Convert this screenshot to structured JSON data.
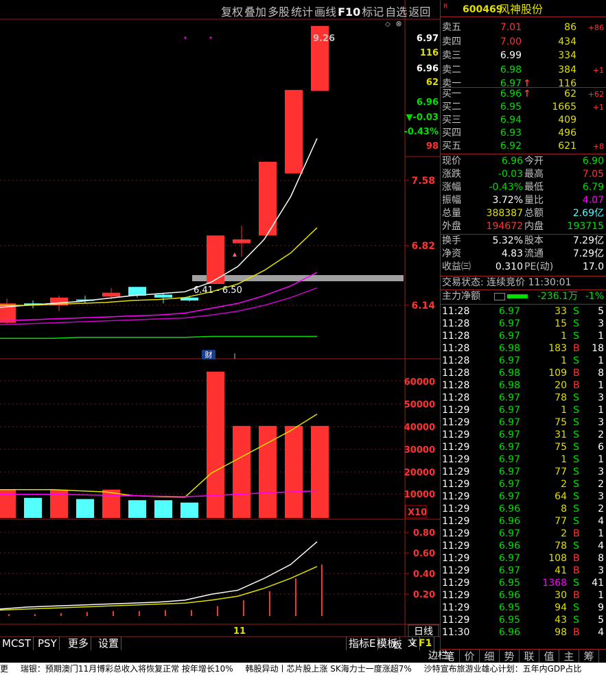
{
  "toolbar": {
    "items": [
      "复权",
      "叠加",
      "多股",
      "统计",
      "画线",
      "F10",
      "标记",
      "自选",
      "返回"
    ]
  },
  "chart": {
    "price_axis": [
      "7.58",
      "6.82",
      "6.14"
    ],
    "left_quote": [
      {
        "v": "6.97",
        "c": "#ffffff"
      },
      {
        "v": "116",
        "c": "#e0e000"
      },
      {
        "v": "6.96",
        "c": "#ffffff"
      },
      {
        "v": "62",
        "c": "#e0e000"
      },
      {
        "v": "6.96",
        "c": "#00e000"
      },
      {
        "v": "▼-0.03",
        "c": "#00e000"
      },
      {
        "v": "-0.43%",
        "c": "#00e000"
      },
      {
        "v": "98",
        "c": "#ff3232"
      }
    ],
    "high_label": "9.26",
    "range_label": "6.41 - 6.50",
    "cai_badge": "财",
    "vol_axis": [
      "60000",
      "50000",
      "40000",
      "30000",
      "20000",
      "10000"
    ],
    "vol_unit": "X10",
    "ind_axis": [
      "0.80",
      "0.60",
      "0.40",
      "0.20"
    ],
    "date_label": "11",
    "period_button": "日线",
    "plus_label": "+",
    "minus_label": "-"
  },
  "chart_data": [
    {
      "type": "candlestick",
      "ylim": [
        5.9,
        9.4
      ],
      "candles": [
        {
          "o": 6.4,
          "h": 6.45,
          "l": 6.18,
          "c": 6.2,
          "color": "red"
        },
        {
          "o": 6.4,
          "h": 6.43,
          "l": 6.35,
          "c": 6.38,
          "color": "cyan"
        },
        {
          "o": 6.38,
          "h": 6.48,
          "l": 6.32,
          "c": 6.46,
          "color": "red"
        },
        {
          "o": 6.44,
          "h": 6.48,
          "l": 6.4,
          "c": 6.44,
          "color": "cyan"
        },
        {
          "o": 6.47,
          "h": 6.56,
          "l": 6.44,
          "c": 6.51,
          "color": "red"
        },
        {
          "o": 6.57,
          "h": 6.57,
          "l": 6.46,
          "c": 6.48,
          "color": "cyan"
        },
        {
          "o": 6.49,
          "h": 6.51,
          "l": 6.4,
          "c": 6.46,
          "color": "cyan"
        },
        {
          "o": 6.46,
          "h": 6.48,
          "l": 6.42,
          "c": 6.43,
          "color": "cyan"
        },
        {
          "o": 6.6,
          "h": 7.1,
          "l": 6.6,
          "c": 7.1,
          "color": "red"
        },
        {
          "o": 7.02,
          "h": 7.2,
          "l": 6.88,
          "c": 7.06,
          "color": "red"
        },
        {
          "o": 7.1,
          "h": 7.86,
          "l": 7.1,
          "c": 7.86,
          "color": "red"
        },
        {
          "o": 7.74,
          "h": 8.6,
          "l": 7.74,
          "c": 8.6,
          "color": "red"
        },
        {
          "o": 8.59,
          "h": 9.26,
          "l": 8.59,
          "c": 9.26,
          "color": "red"
        }
      ],
      "ma_white": [
        6.36,
        6.38,
        6.4,
        6.42,
        6.45,
        6.48,
        6.5,
        6.52,
        6.62,
        6.78,
        7.06,
        7.5,
        8.1
      ],
      "ma_yellow": [
        6.38,
        6.38,
        6.39,
        6.4,
        6.41,
        6.43,
        6.44,
        6.46,
        6.52,
        6.6,
        6.74,
        6.92,
        7.18
      ],
      "ma_magenta1": [
        6.22,
        6.23,
        6.24,
        6.25,
        6.26,
        6.27,
        6.28,
        6.3,
        6.35,
        6.4,
        6.48,
        6.58,
        6.72
      ],
      "ma_magenta2": [
        6.18,
        6.19,
        6.2,
        6.21,
        6.22,
        6.23,
        6.24,
        6.25,
        6.28,
        6.32,
        6.38,
        6.46,
        6.56
      ],
      "ma_green": [
        6.04,
        6.04,
        6.04,
        6.05,
        6.05,
        6.05,
        6.05,
        6.05,
        6.06,
        6.06,
        6.06,
        6.06,
        6.06
      ]
    },
    {
      "type": "bar",
      "ylim": [
        0,
        66000
      ],
      "values": [
        12000,
        8500,
        12000,
        8000,
        12000,
        7500,
        7500,
        6500,
        62000,
        39000,
        39000,
        39000,
        39000
      ],
      "colors": [
        "red",
        "cyan",
        "red",
        "cyan",
        "red",
        "cyan",
        "cyan",
        "cyan",
        "red",
        "red",
        "red",
        "red",
        "red"
      ],
      "ma_yellow": [
        12000,
        12000,
        12000,
        11500,
        11000,
        9500,
        9000,
        8800,
        19000,
        25000,
        31000,
        37000,
        44000
      ],
      "ma_magenta": [
        10000,
        10000,
        10000,
        9800,
        9600,
        9400,
        9200,
        9000,
        9400,
        10000,
        10600,
        11000,
        11500
      ]
    },
    {
      "type": "line",
      "ylim": [
        0,
        0.9
      ],
      "bars": [
        0.02,
        0.02,
        0.03,
        0.04,
        0.05,
        0.05,
        0.06,
        0.06,
        0.1,
        0.16,
        0.25,
        0.38,
        0.52
      ],
      "white": [
        0.07,
        0.09,
        0.1,
        0.11,
        0.12,
        0.13,
        0.14,
        0.16,
        0.22,
        0.26,
        0.38,
        0.52,
        0.75
      ],
      "yellow": [
        0.06,
        0.07,
        0.08,
        0.09,
        0.1,
        0.11,
        0.12,
        0.13,
        0.16,
        0.2,
        0.28,
        0.38,
        0.5
      ]
    }
  ],
  "stock": {
    "r_flag": "R",
    "code": "600469",
    "name": "风神股份"
  },
  "asks": [
    {
      "label": "卖五",
      "price": "7.01",
      "vol": "86",
      "chg": "+86",
      "pc": "red",
      "arrow": ""
    },
    {
      "label": "卖四",
      "price": "7.00",
      "vol": "434",
      "chg": "",
      "pc": "red",
      "arrow": ""
    },
    {
      "label": "卖三",
      "price": "6.99",
      "vol": "334",
      "chg": "",
      "pc": "wht",
      "arrow": ""
    },
    {
      "label": "卖二",
      "price": "6.98",
      "vol": "384",
      "chg": "+1",
      "pc": "grn",
      "arrow": ""
    },
    {
      "label": "卖一",
      "price": "6.97",
      "vol": "116",
      "chg": "",
      "pc": "grn",
      "arrow": "↑"
    }
  ],
  "bids": [
    {
      "label": "买一",
      "price": "6.96",
      "vol": "62",
      "chg": "+62",
      "pc": "grn",
      "arrow": "↑"
    },
    {
      "label": "买二",
      "price": "6.95",
      "vol": "1665",
      "chg": "+1",
      "pc": "grn",
      "arrow": ""
    },
    {
      "label": "买三",
      "price": "6.94",
      "vol": "409",
      "chg": "",
      "pc": "grn",
      "arrow": ""
    },
    {
      "label": "买四",
      "price": "6.93",
      "vol": "496",
      "chg": "",
      "pc": "grn",
      "arrow": ""
    },
    {
      "label": "买五",
      "price": "6.92",
      "vol": "621",
      "chg": "+8",
      "pc": "grn",
      "arrow": ""
    }
  ],
  "stats": [
    {
      "l1": "现价",
      "v1": "6.96",
      "c1": "grn",
      "l2": "今开",
      "v2": "6.90",
      "c2": "grn"
    },
    {
      "l1": "涨跌",
      "v1": "-0.03",
      "c1": "grn",
      "l2": "最高",
      "v2": "7.05",
      "c2": "red"
    },
    {
      "l1": "涨幅",
      "v1": "-0.43%",
      "c1": "grn",
      "l2": "最低",
      "v2": "6.79",
      "c2": "grn"
    },
    {
      "l1": "振幅",
      "v1": "3.72%",
      "c1": "wht",
      "l2": "量比",
      "v2": "4.07",
      "c2": "pur"
    },
    {
      "l1": "总量",
      "v1": "388387",
      "c1": "yel",
      "l2": "总额",
      "v2": "2.69亿",
      "c2": "cyn"
    },
    {
      "l1": "外盘",
      "v1": "194672",
      "c1": "red",
      "l2": "内盘",
      "v2": "193715",
      "c2": "grn"
    },
    {
      "l1": "换手",
      "v1": "5.32%",
      "c1": "wht",
      "l2": "股本",
      "v2": "7.29亿",
      "c2": "wht"
    },
    {
      "l1": "净资",
      "v1": "4.83",
      "c1": "wht",
      "l2": "流通",
      "v2": "7.29亿",
      "c2": "wht"
    },
    {
      "l1": "收益㈢",
      "v1": "0.310",
      "c1": "wht",
      "l2": "PE(动)",
      "v2": "17.0",
      "c2": "wht"
    }
  ],
  "trade_status": "交易状态: 连续竞价 11:30:01",
  "main_force": {
    "label": "主力净额",
    "value": "-236.1万",
    "pct": "-1%"
  },
  "ticks": [
    {
      "t": "11:28",
      "p": "6.97",
      "v": "33",
      "d": "S",
      "n": "5"
    },
    {
      "t": "11:28",
      "p": "6.97",
      "v": "15",
      "d": "S",
      "n": "3"
    },
    {
      "t": "11:28",
      "p": "6.97",
      "v": "1",
      "d": "S",
      "n": "1"
    },
    {
      "t": "11:28",
      "p": "6.98",
      "v": "183",
      "d": "B",
      "n": "18"
    },
    {
      "t": "11:28",
      "p": "6.97",
      "v": "1",
      "d": "S",
      "n": "1"
    },
    {
      "t": "11:28",
      "p": "6.98",
      "v": "109",
      "d": "B",
      "n": "8"
    },
    {
      "t": "11:28",
      "p": "6.98",
      "v": "20",
      "d": "B",
      "n": "1"
    },
    {
      "t": "11:28",
      "p": "6.97",
      "v": "78",
      "d": "S",
      "n": "3"
    },
    {
      "t": "11:29",
      "p": "6.97",
      "v": "1",
      "d": "S",
      "n": "1"
    },
    {
      "t": "11:29",
      "p": "6.97",
      "v": "75",
      "d": "S",
      "n": "3"
    },
    {
      "t": "11:29",
      "p": "6.97",
      "v": "31",
      "d": "S",
      "n": "2"
    },
    {
      "t": "11:29",
      "p": "6.97",
      "v": "75",
      "d": "S",
      "n": "6"
    },
    {
      "t": "11:29",
      "p": "6.97",
      "v": "1",
      "d": "S",
      "n": "1"
    },
    {
      "t": "11:29",
      "p": "6.97",
      "v": "77",
      "d": "S",
      "n": "3"
    },
    {
      "t": "11:29",
      "p": "6.97",
      "v": "2",
      "d": "S",
      "n": "2"
    },
    {
      "t": "11:29",
      "p": "6.97",
      "v": "64",
      "d": "S",
      "n": "3"
    },
    {
      "t": "11:29",
      "p": "6.96",
      "v": "8",
      "d": "S",
      "n": "2"
    },
    {
      "t": "11:29",
      "p": "6.96",
      "v": "77",
      "d": "S",
      "n": "4"
    },
    {
      "t": "11:29",
      "p": "6.97",
      "v": "2",
      "d": "B",
      "n": "1"
    },
    {
      "t": "11:29",
      "p": "6.96",
      "v": "78",
      "d": "S",
      "n": "4"
    },
    {
      "t": "11:29",
      "p": "6.97",
      "v": "108",
      "d": "B",
      "n": "8"
    },
    {
      "t": "11:29",
      "p": "6.97",
      "v": "41",
      "d": "B",
      "n": "3"
    },
    {
      "t": "11:29",
      "p": "6.95",
      "v": "1368",
      "d": "S",
      "n": "41"
    },
    {
      "t": "11:29",
      "p": "6.96",
      "v": "30",
      "d": "B",
      "n": "1"
    },
    {
      "t": "11:29",
      "p": "6.95",
      "v": "94",
      "d": "S",
      "n": "9"
    },
    {
      "t": "11:29",
      "p": "6.95",
      "v": "43",
      "d": "S",
      "n": "5"
    },
    {
      "t": "11:30",
      "p": "6.96",
      "v": "98",
      "d": "B",
      "n": "4"
    }
  ],
  "tabs": [
    "笔",
    "价",
    "细",
    "势",
    "联",
    "值",
    "主",
    "筹"
  ],
  "bottom_left": [
    "MCST",
    "PSY",
    "更多",
    "设置"
  ],
  "bottom_right": [
    "指标E",
    "模板"
  ],
  "side_tab": "板",
  "side_mini": [
    "文",
    "F1",
    "边栏"
  ],
  "ticker": [
    "更",
    "瑞银：预期澳门11月博彩总收入将恢复正常 按年增长10%",
    "韩股异动丨芯片股上涨 SK海力士一度涨超7%",
    "沙特宣布旅游业雄心计划：五年内GDP占比"
  ]
}
